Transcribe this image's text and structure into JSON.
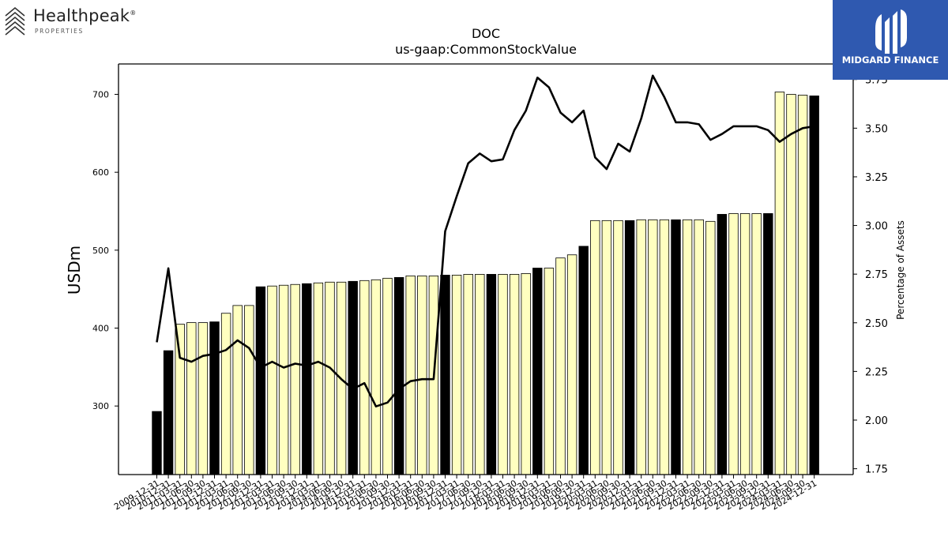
{
  "logos": {
    "left_name": "Healthpeak",
    "left_reg": "®",
    "left_sub": "PROPERTIES",
    "right_name": "MIDGARD FINANCE"
  },
  "chart_data": {
    "type": "bar",
    "title": "DOC",
    "subtitle": "us-gaap:CommonStockValue",
    "ylabel": "USDm",
    "ylabel_right": "Percentage of Assets",
    "ylim": [
      212,
      739
    ],
    "ylim_right": [
      1.72,
      3.83
    ],
    "yticks": [
      300,
      400,
      500,
      600,
      700
    ],
    "yticks_right": [
      "1.75",
      "2.00",
      "2.25",
      "2.50",
      "2.75",
      "3.00",
      "3.25",
      "3.50",
      "3.75"
    ],
    "grid": false,
    "colors": {
      "quarter": "#ffffc0",
      "year_end": "#000000",
      "line": "#000000"
    },
    "categories": [
      "2009-12-31",
      "2010-12-31",
      "2011-03-31",
      "2011-06-30",
      "2011-09-30",
      "2011-12-31",
      "2012-03-31",
      "2012-06-30",
      "2012-09-30",
      "2012-12-31",
      "2013-03-31",
      "2013-06-30",
      "2013-09-30",
      "2013-12-31",
      "2014-03-31",
      "2014-06-30",
      "2014-09-30",
      "2014-12-31",
      "2015-03-31",
      "2015-06-30",
      "2015-09-30",
      "2015-12-31",
      "2016-03-31",
      "2016-06-30",
      "2016-09-30",
      "2016-12-31",
      "2017-03-31",
      "2017-06-30",
      "2017-09-30",
      "2017-12-31",
      "2018-03-31",
      "2018-06-30",
      "2018-09-30",
      "2018-12-31",
      "2019-03-31",
      "2019-06-30",
      "2019-09-30",
      "2019-12-31",
      "2020-03-31",
      "2020-06-30",
      "2020-09-30",
      "2020-12-31",
      "2021-03-31",
      "2021-06-30",
      "2021-09-30",
      "2021-12-31",
      "2022-03-31",
      "2022-06-30",
      "2022-09-30",
      "2022-12-31",
      "2023-03-31",
      "2023-06-30",
      "2023-09-30",
      "2023-12-31",
      "2024-03-31",
      "2024-06-30",
      "2024-09-30",
      "2024-12-31"
    ],
    "year_end_flags": [
      1,
      1,
      0,
      0,
      0,
      1,
      0,
      0,
      0,
      1,
      0,
      0,
      0,
      1,
      0,
      0,
      0,
      1,
      0,
      0,
      0,
      1,
      0,
      0,
      0,
      1,
      0,
      0,
      0,
      1,
      0,
      0,
      0,
      1,
      0,
      0,
      0,
      1,
      0,
      0,
      0,
      1,
      0,
      0,
      0,
      1,
      0,
      0,
      0,
      1,
      0,
      0,
      0,
      1,
      0,
      0,
      0,
      1
    ],
    "series": [
      {
        "type": "bar",
        "axis": "left",
        "values": [
          293,
          371,
          405,
          407,
          407,
          408,
          419,
          429,
          429,
          453,
          454,
          455,
          456,
          457,
          458,
          459,
          459,
          460,
          461,
          462,
          464,
          465,
          467,
          467,
          467,
          468,
          468,
          469,
          469,
          469,
          469,
          469,
          470,
          477,
          477,
          490,
          494,
          505,
          538,
          538,
          538,
          538,
          539,
          539,
          539,
          539,
          539,
          539,
          537,
          546,
          547,
          547,
          547,
          547,
          703,
          700,
          699,
          698
        ]
      },
      {
        "type": "line",
        "axis": "right",
        "values": [
          2.4,
          2.78,
          2.32,
          2.3,
          2.33,
          2.34,
          2.36,
          2.41,
          2.37,
          2.27,
          2.3,
          2.27,
          2.29,
          2.28,
          2.3,
          2.27,
          2.21,
          2.16,
          2.19,
          2.07,
          2.09,
          2.16,
          2.2,
          2.21,
          2.21,
          2.97,
          3.15,
          3.32,
          3.37,
          3.33,
          3.34,
          3.49,
          3.59,
          3.76,
          3.71,
          3.58,
          3.53,
          3.59,
          3.35,
          3.29,
          3.42,
          3.38,
          3.55,
          3.77,
          3.66,
          3.53,
          3.53,
          3.52,
          3.44,
          3.47,
          3.51,
          3.51,
          3.51,
          3.49,
          3.43,
          3.47,
          3.5,
          3.51
        ]
      }
    ]
  }
}
